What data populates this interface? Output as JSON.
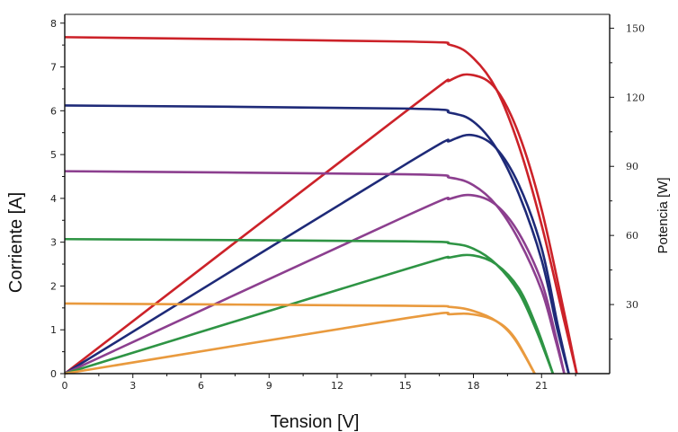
{
  "chart_data": {
    "type": "line",
    "xlabel": "Tension [V]",
    "ylabel": "Corriente [A]",
    "y2label": "Potencia [W]",
    "xlim": [
      0,
      24
    ],
    "ylim": [
      0,
      8.2
    ],
    "y2lim": [
      0,
      156
    ],
    "x_ticks": [
      "0",
      "3",
      "6",
      "9",
      "12",
      "15",
      "18",
      "21"
    ],
    "y_ticks": [
      "0",
      "1",
      "2",
      "3",
      "4",
      "5",
      "6",
      "7",
      "8"
    ],
    "y2_ticks": [
      "30",
      "60",
      "90",
      "120",
      "150"
    ],
    "grid": false,
    "series": [
      {
        "color": "#cc2229",
        "current": [
          [
            0,
            7.68
          ],
          [
            15,
            7.58
          ],
          [
            17,
            7.5
          ],
          [
            18,
            7.2
          ],
          [
            19,
            6.5
          ],
          [
            20,
            5.2
          ],
          [
            21,
            3.4
          ],
          [
            22,
            1.2
          ],
          [
            22.55,
            0
          ]
        ],
        "power": [
          [
            0,
            0
          ],
          [
            15,
            113.7
          ],
          [
            17,
            127.5
          ],
          [
            18,
            129.6
          ],
          [
            19,
            123.5
          ],
          [
            20,
            104
          ],
          [
            21,
            71.4
          ],
          [
            22,
            26.4
          ],
          [
            22.55,
            0
          ]
        ]
      },
      {
        "color": "#1e2a78",
        "current": [
          [
            0,
            6.12
          ],
          [
            15,
            6.05
          ],
          [
            17,
            5.95
          ],
          [
            18,
            5.75
          ],
          [
            19,
            5.15
          ],
          [
            20,
            4.1
          ],
          [
            21,
            2.6
          ],
          [
            21.7,
            1.0
          ],
          [
            22.2,
            0
          ]
        ],
        "power": [
          [
            0,
            0
          ],
          [
            15,
            90.8
          ],
          [
            17,
            101.2
          ],
          [
            18,
            103.5
          ],
          [
            19,
            97.9
          ],
          [
            20,
            82
          ],
          [
            21,
            54.6
          ],
          [
            21.7,
            21.7
          ],
          [
            22.2,
            0
          ]
        ]
      },
      {
        "color": "#8c3f8f",
        "current": [
          [
            0,
            4.62
          ],
          [
            15,
            4.55
          ],
          [
            17,
            4.47
          ],
          [
            18,
            4.3
          ],
          [
            19,
            3.85
          ],
          [
            20,
            3.05
          ],
          [
            21,
            1.9
          ],
          [
            21.6,
            0.8
          ],
          [
            22.0,
            0
          ]
        ],
        "power": [
          [
            0,
            0
          ],
          [
            15,
            68.3
          ],
          [
            17,
            76
          ],
          [
            18,
            77.4
          ],
          [
            19,
            73.2
          ],
          [
            20,
            61
          ],
          [
            21,
            39.9
          ],
          [
            21.6,
            17.3
          ],
          [
            22.0,
            0
          ]
        ]
      },
      {
        "color": "#2e9444",
        "current": [
          [
            0,
            3.07
          ],
          [
            15,
            3.02
          ],
          [
            17,
            2.97
          ],
          [
            18,
            2.85
          ],
          [
            19,
            2.5
          ],
          [
            20,
            1.85
          ],
          [
            20.8,
            0.95
          ],
          [
            21.5,
            0
          ]
        ],
        "power": [
          [
            0,
            0
          ],
          [
            15,
            45.3
          ],
          [
            17,
            50.5
          ],
          [
            18,
            51.3
          ],
          [
            19,
            47.5
          ],
          [
            20,
            37
          ],
          [
            20.8,
            19.8
          ],
          [
            21.5,
            0
          ]
        ]
      },
      {
        "color": "#e99a3e",
        "current": [
          [
            0,
            1.6
          ],
          [
            15,
            1.55
          ],
          [
            17,
            1.52
          ],
          [
            18,
            1.43
          ],
          [
            19,
            1.2
          ],
          [
            19.8,
            0.8
          ],
          [
            20.7,
            0
          ]
        ],
        "power": [
          [
            0,
            0
          ],
          [
            15,
            24
          ],
          [
            17,
            25.8
          ],
          [
            18,
            25.7
          ],
          [
            19,
            22.8
          ],
          [
            19.8,
            15.8
          ],
          [
            20.7,
            0
          ]
        ]
      }
    ]
  }
}
